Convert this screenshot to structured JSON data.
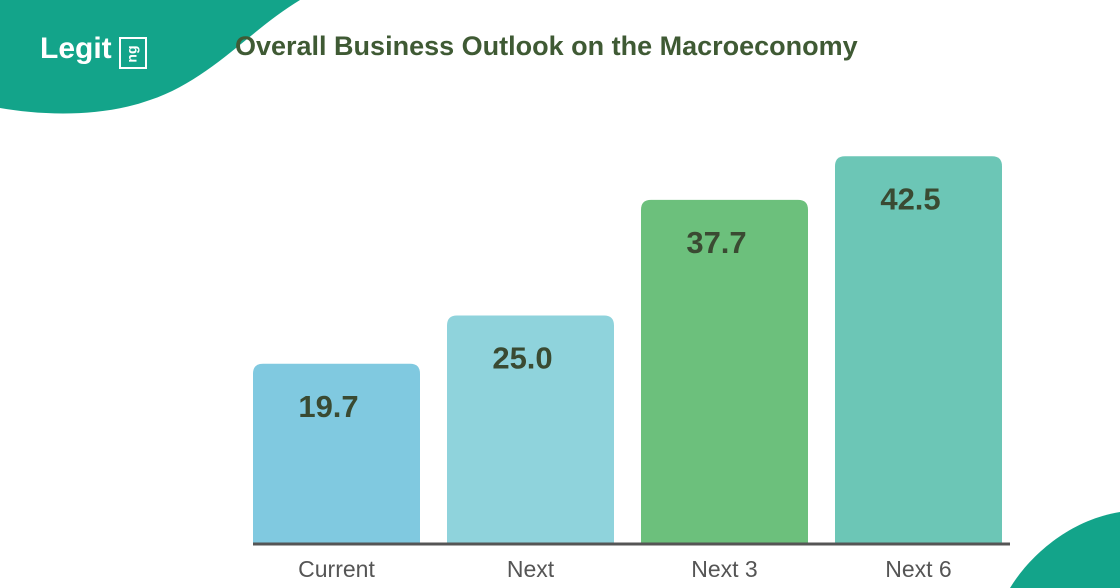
{
  "brand": {
    "name": "Legit",
    "suffix": "ng"
  },
  "chart_data": {
    "type": "bar",
    "title": "Overall Business Outlook on the Macroeconomy",
    "categories": [
      "Current",
      "Next",
      "Next 3",
      "Next 6"
    ],
    "values": [
      19.7,
      25,
      37.7,
      42.5
    ],
    "value_labels": [
      "19.7",
      "25.0",
      "37.7",
      "42.5"
    ],
    "colors": [
      "#80c9e0",
      "#8fd3dc",
      "#6cc07c",
      "#6cc6b6"
    ]
  }
}
